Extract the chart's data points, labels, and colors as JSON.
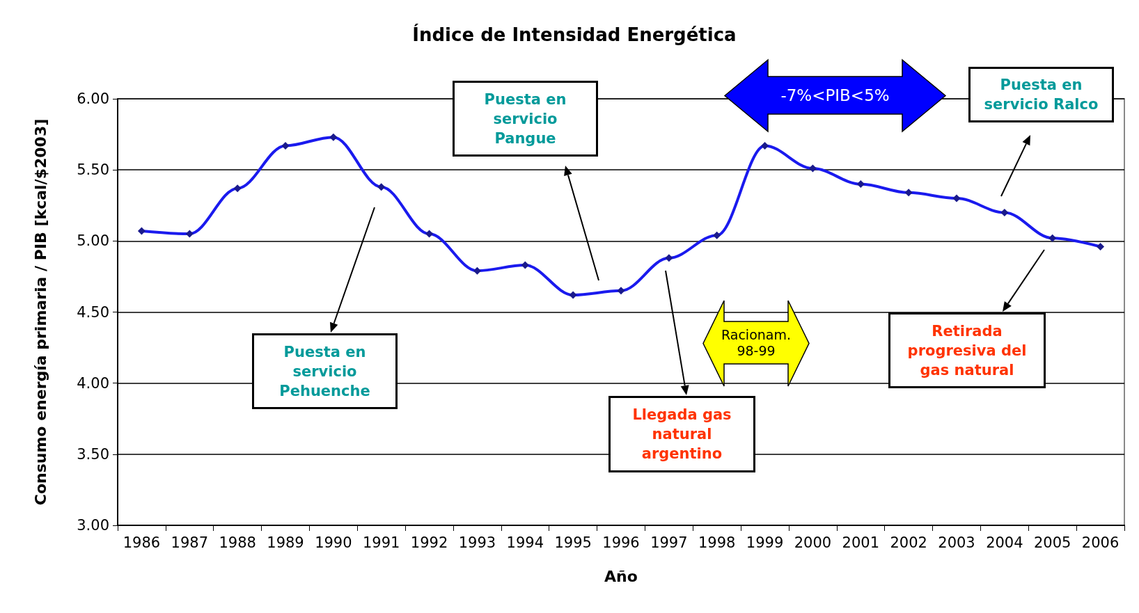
{
  "chart_data": {
    "type": "line",
    "title": "Índice de Intensidad Energética",
    "xlabel": "Año",
    "ylabel": "Consumo energía primaria / PIB [kcal/$2003]",
    "categories": [
      "1986",
      "1987",
      "1988",
      "1989",
      "1990",
      "1991",
      "1992",
      "1993",
      "1994",
      "1995",
      "1996",
      "1997",
      "1998",
      "1999",
      "2000",
      "2001",
      "2002",
      "2003",
      "2004",
      "2005",
      "2006"
    ],
    "series": [
      {
        "color": "#1a1aee",
        "values": [
          5.07,
          5.05,
          5.37,
          5.67,
          5.73,
          5.38,
          5.05,
          4.79,
          4.83,
          4.62,
          4.65,
          4.88,
          5.04,
          5.67,
          5.51,
          5.4,
          5.34,
          5.3,
          5.2,
          5.02,
          4.96
        ]
      }
    ],
    "ylim": [
      3,
      6
    ],
    "yticks": [
      {
        "value": 3,
        "label": "3.00"
      },
      {
        "value": 3.5,
        "label": "3.50"
      },
      {
        "value": 4,
        "label": "4.00"
      },
      {
        "value": 4.5,
        "label": "4.50"
      },
      {
        "value": 5,
        "label": "5.00"
      },
      {
        "value": 5.5,
        "label": "5.50"
      },
      {
        "value": 6,
        "label": "6.00"
      }
    ],
    "grid": "y",
    "marker": "diamond",
    "line_style": "solid",
    "annotations": [
      "Puesta en servicio Pehuenche",
      "Puesta en servicio Pangue",
      "Llegada gas natural argentino",
      "Retirada progresiva del gas natural",
      "Puesta en servicio Ralco",
      "-7%<PIB<5%",
      "Racionam. 98-99"
    ]
  }
}
